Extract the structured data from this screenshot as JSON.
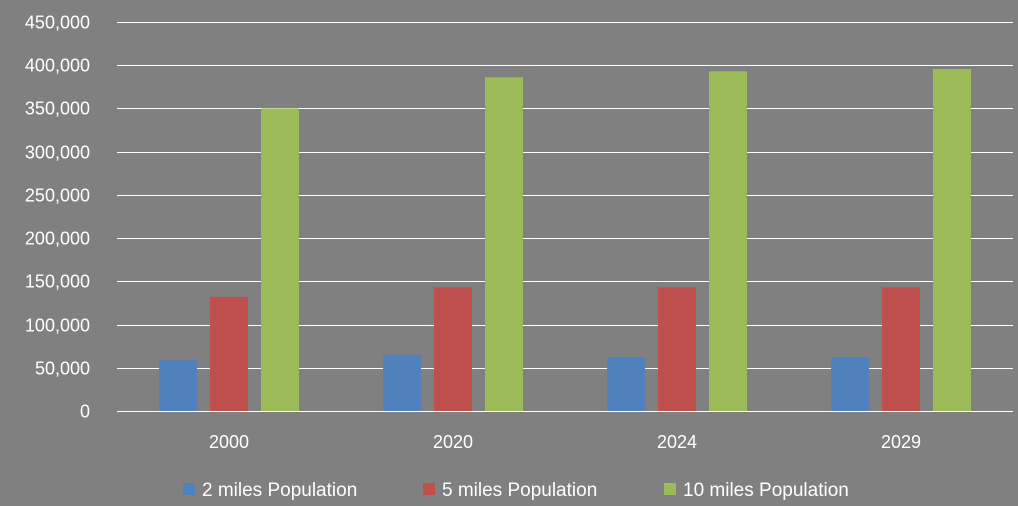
{
  "chart_data": {
    "type": "bar",
    "title": "",
    "xlabel": "",
    "ylabel": "",
    "categories": [
      "2000",
      "2020",
      "2024",
      "2029"
    ],
    "series": [
      {
        "name": "2 miles Population",
        "color": "#4f81bd",
        "values": [
          58500,
          65000,
          62500,
          62500
        ]
      },
      {
        "name": "5 miles Population",
        "color": "#c0504d",
        "values": [
          132000,
          143000,
          143000,
          143000
        ]
      },
      {
        "name": "10 miles Population",
        "color": "#9bbb59",
        "values": [
          350000,
          386000,
          393000,
          395500
        ]
      }
    ],
    "ylim": [
      0,
      450000
    ],
    "y_ticks": [
      "0",
      "50,000",
      "100,000",
      "150,000",
      "200,000",
      "250,000",
      "300,000",
      "350,000",
      "400,000",
      "450,000"
    ],
    "y_tick_values": [
      0,
      50000,
      100000,
      150000,
      200000,
      250000,
      300000,
      350000,
      400000,
      450000
    ],
    "grid": true,
    "legend_position": "bottom",
    "background_color": "#808080"
  }
}
